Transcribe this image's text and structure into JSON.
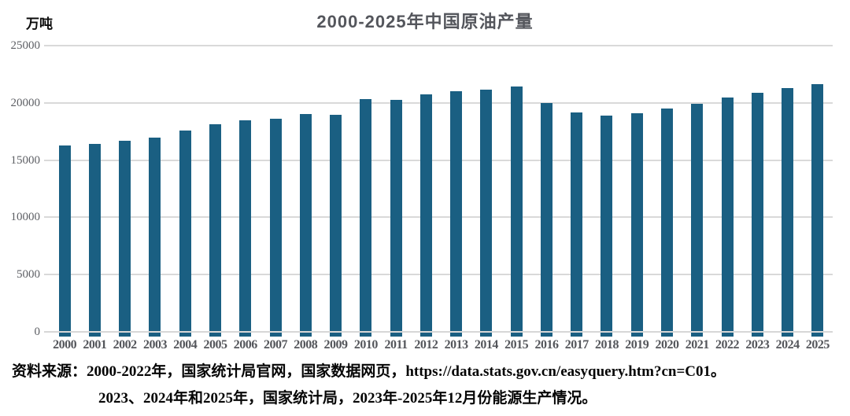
{
  "header": {
    "title": "2000-2025年中国原油产量",
    "unit_label": "万吨"
  },
  "chart_data": {
    "type": "bar",
    "title": "2000-2025年中国原油产量",
    "ylabel": "万吨",
    "xlabel": "",
    "categories": [
      "2000",
      "2001",
      "2002",
      "2003",
      "2004",
      "2005",
      "2006",
      "2007",
      "2008",
      "2009",
      "2010",
      "2011",
      "2012",
      "2013",
      "2014",
      "2015",
      "2016",
      "2017",
      "2018",
      "2019",
      "2020",
      "2021",
      "2022",
      "2023",
      "2024",
      "2025"
    ],
    "values": [
      16300,
      16396,
      16700,
      16960,
      17587,
      18135,
      18477,
      18632,
      19044,
      18949,
      20301,
      20288,
      20748,
      20992,
      21143,
      21456,
      19969,
      19151,
      18911,
      19101,
      19477,
      19898,
      20467,
      20891,
      21260,
      21630
    ],
    "ylim": [
      0,
      25000
    ],
    "yticks": [
      0,
      5000,
      10000,
      15000,
      20000,
      25000
    ],
    "grid": true,
    "legend": "none",
    "bar_color": "#1a5f82"
  },
  "source": {
    "line1": "资料来源：2000-2022年，国家统计局官网，国家数据网页，https://data.stats.gov.cn/easyquery.htm?cn=C01。",
    "line2": "2023、2024年和2025年，国家统计局，2023年-2025年12月份能源生产情况。"
  },
  "colors": {
    "bar": "#1a5f82",
    "gridline": "#d9d9d9",
    "title_text": "#54565c",
    "tick_text": "#54565b",
    "source_text": "#050505",
    "background": "#ffffff"
  }
}
